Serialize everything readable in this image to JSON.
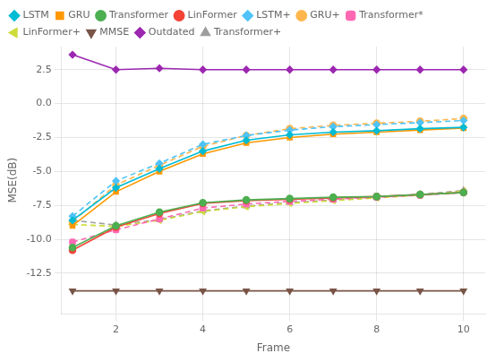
{
  "chart_data": {
    "type": "line",
    "x_label": "Frame",
    "y_label": "MSE(dB)",
    "x": [
      1,
      2,
      3,
      4,
      5,
      6,
      7,
      8,
      9,
      10
    ],
    "xlim": [
      0.75,
      10.5
    ],
    "xticks": [
      2,
      4,
      6,
      8,
      10
    ],
    "ylim": [
      -15.5,
      4.2
    ],
    "yticks": [
      -12.5,
      {
        "value": -10,
        "label": "-10.0"
      },
      -7.5,
      {
        "value": -5,
        "label": "-5.0"
      },
      -2.5,
      {
        "value": 0,
        "label": "0.0"
      },
      2.5
    ],
    "grid": true,
    "legend": "upper left",
    "series": [
      {
        "name": "LSTM",
        "color": "#00bcd4",
        "marker": "diamond",
        "line_style": "solid",
        "values": [
          -8.6,
          -6.2,
          -4.8,
          -3.5,
          -2.7,
          -2.3,
          -2.1,
          -2.0,
          -1.85,
          -1.75
        ]
      },
      {
        "name": "GRU",
        "color": "#ff9800",
        "marker": "square",
        "line_style": "solid",
        "values": [
          -9.0,
          -6.5,
          -5.0,
          -3.7,
          -2.9,
          -2.5,
          -2.25,
          -2.1,
          -1.95,
          -1.8
        ]
      },
      {
        "name": "Transformer",
        "color": "#4caf50",
        "marker": "circle",
        "line_style": "solid",
        "values": [
          -10.6,
          -9.0,
          -8.0,
          -7.3,
          -7.1,
          -7.0,
          -6.9,
          -6.85,
          -6.7,
          -6.55
        ]
      },
      {
        "name": "LinFormer",
        "color": "#f44336",
        "marker": "circle",
        "line_style": "solid",
        "values": [
          -10.8,
          -9.1,
          -8.1,
          -7.35,
          -7.15,
          -7.05,
          -6.95,
          -6.85,
          -6.7,
          -6.55
        ]
      },
      {
        "name": "LSTM+",
        "color": "#4fc3f7",
        "marker": "diamond",
        "line_style": "dashed",
        "values": [
          -8.3,
          -5.7,
          -4.4,
          -3.0,
          -2.35,
          -1.95,
          -1.7,
          -1.55,
          -1.4,
          -1.25
        ]
      },
      {
        "name": "GRU+",
        "color": "#ffb74d",
        "marker": "circle",
        "line_style": "dashed",
        "values": [
          -8.7,
          -6.0,
          -4.55,
          -3.15,
          -2.35,
          -1.85,
          -1.6,
          -1.45,
          -1.3,
          -1.1
        ]
      },
      {
        "name": "Transformer*",
        "color": "#ff69b4",
        "marker": "pentagon",
        "line_style": "dashed",
        "values": [
          -10.2,
          -9.3,
          -8.5,
          -7.7,
          -7.4,
          -7.2,
          -7.05,
          -6.9,
          -6.75,
          -6.55
        ]
      },
      {
        "name": "LinFormer+",
        "color": "#cddc39",
        "marker": "triangle_left",
        "line_style": "dashed",
        "values": [
          -8.9,
          -9.05,
          -8.6,
          -7.95,
          -7.6,
          -7.35,
          -7.15,
          -6.95,
          -6.75,
          -6.45
        ]
      },
      {
        "name": "MMSE",
        "color": "#795548",
        "marker": "triangle_down",
        "line_style": "solid",
        "values": [
          -13.8,
          -13.8,
          -13.8,
          -13.8,
          -13.8,
          -13.8,
          -13.8,
          -13.8,
          -13.8,
          -13.8
        ]
      },
      {
        "name": "Outdated",
        "color": "#9c27b0",
        "marker": "diamond",
        "line_style": "solid",
        "values": [
          3.6,
          2.5,
          2.6,
          2.5,
          2.5,
          2.5,
          2.5,
          2.5,
          2.5,
          2.5
        ]
      },
      {
        "name": "Transformer+",
        "color": "#9e9e9e",
        "marker": "triangle_up",
        "line_style": "dashed",
        "values": [
          -8.6,
          -8.95,
          -8.55,
          -7.9,
          -7.55,
          -7.3,
          -7.1,
          -6.9,
          -6.7,
          -6.4
        ]
      }
    ]
  }
}
